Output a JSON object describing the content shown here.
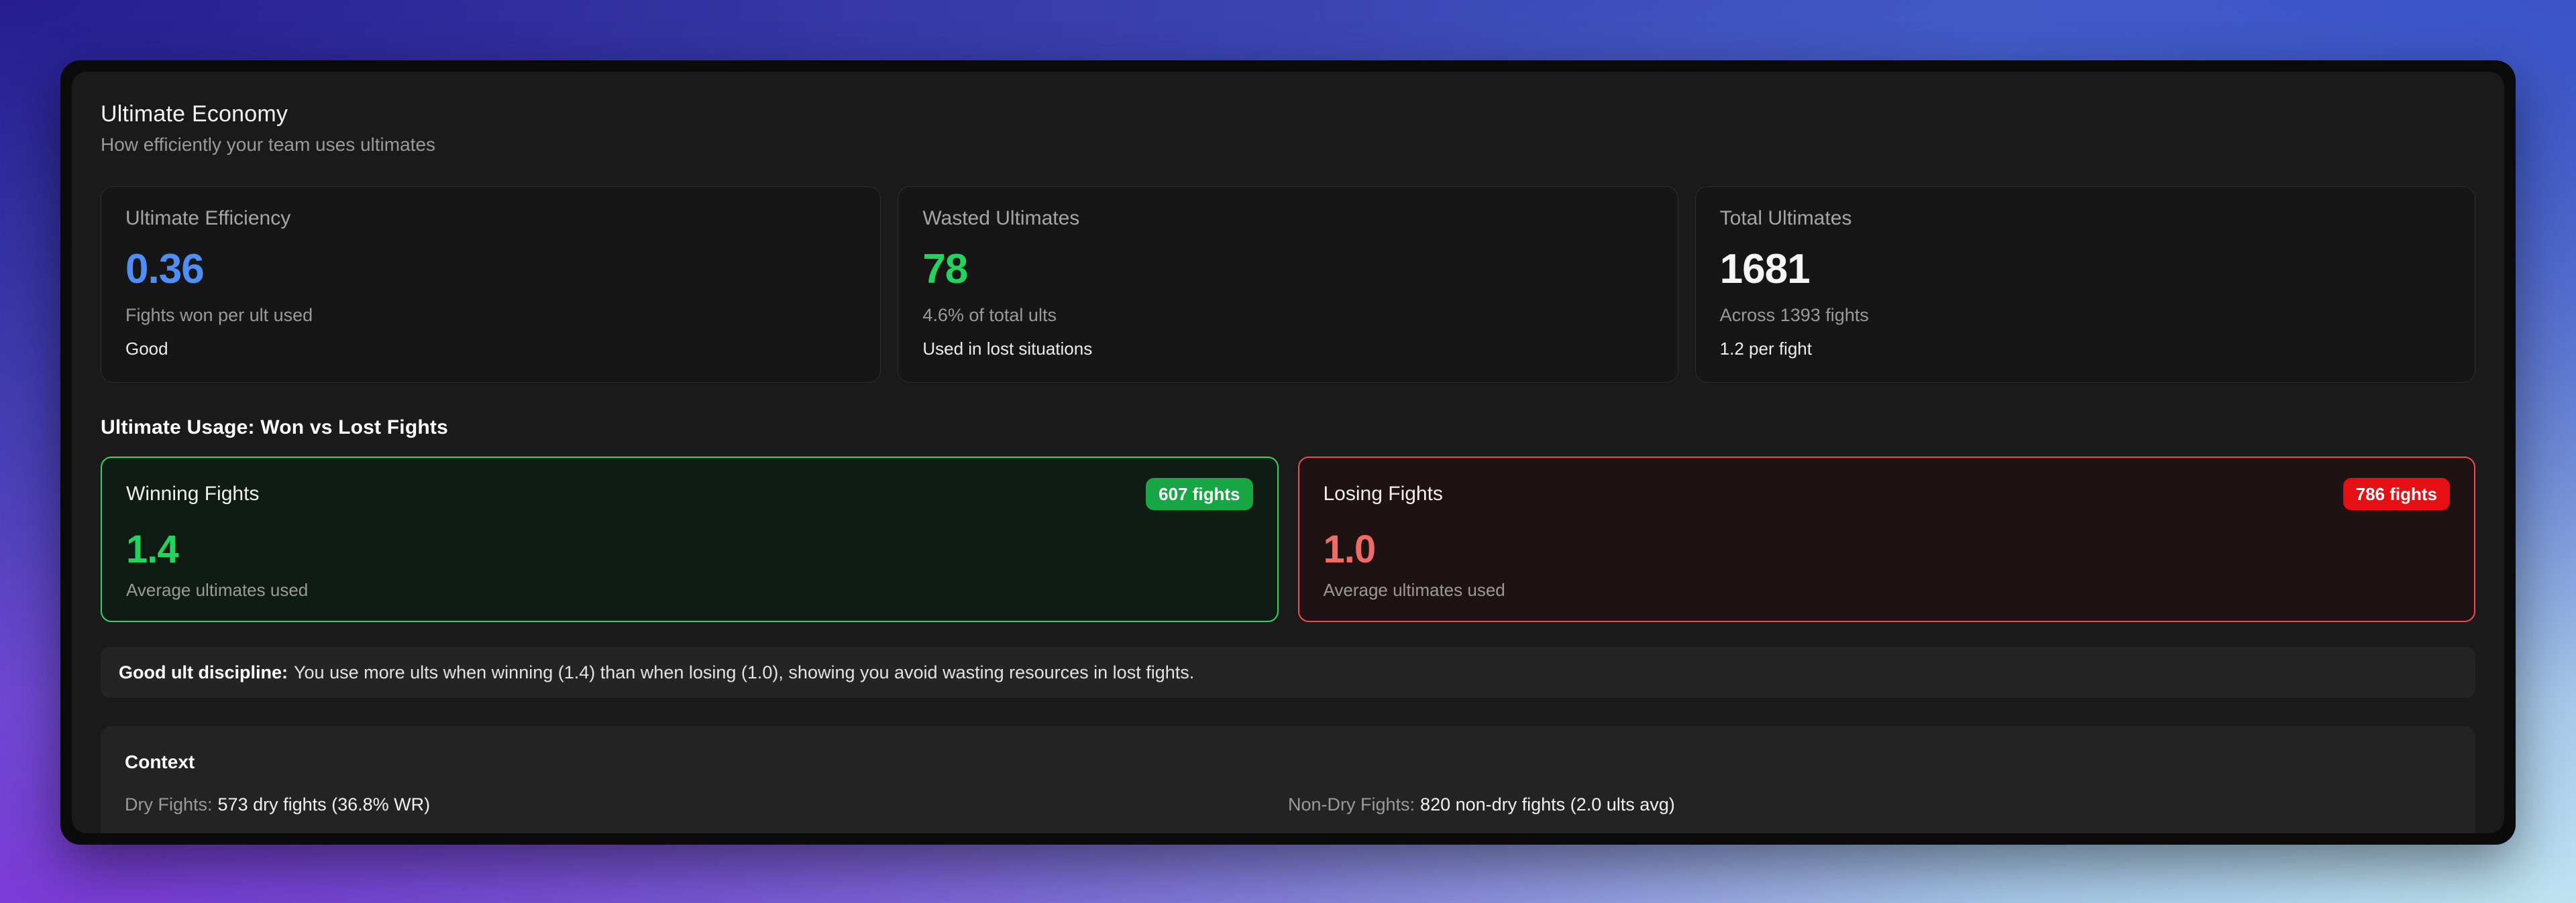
{
  "page": {
    "title": "Ultimate Economy",
    "subtitle": "How efficiently your team uses ultimates"
  },
  "stat_cards": [
    {
      "label": "Ultimate Efficiency",
      "value": "0.36",
      "sub": "Fights won per ult used",
      "note": "Good",
      "value_color": "#4e8ef5"
    },
    {
      "label": "Wasted Ultimates",
      "value": "78",
      "sub": "4.6% of total ults",
      "note": "Used in lost situations",
      "value_color": "#22d35f"
    },
    {
      "label": "Total Ultimates",
      "value": "1681",
      "sub": "Across 1393 fights",
      "note": "1.2 per fight",
      "value_color": "#f5f5f5"
    }
  ],
  "usage_section": {
    "heading": "Ultimate Usage: Won vs Lost Fights",
    "winning": {
      "title": "Winning Fights",
      "badge": "607 fights",
      "value": "1.4",
      "sub": "Average ultimates used",
      "accent": "#2fd566",
      "badge_color": "#18a543"
    },
    "losing": {
      "title": "Losing Fights",
      "badge": "786 fights",
      "value": "1.0",
      "sub": "Average ultimates used",
      "accent": "#f14b4b",
      "badge_color": "#e60f14"
    }
  },
  "insight": {
    "lead": "Good ult discipline:",
    "text": "You use more ults when winning (1.4) than when losing (1.0), showing you avoid wasting resources in lost fights."
  },
  "context": {
    "title": "Context",
    "items": [
      {
        "label": "Dry Fights:",
        "value": "573 dry fights (36.8% WR)"
      },
      {
        "label": "Non-Dry Fights:",
        "value": "820 non-dry fights (2.0 ults avg)"
      }
    ]
  }
}
